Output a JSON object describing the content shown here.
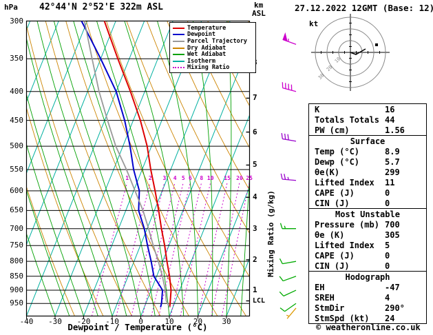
{
  "header": {
    "hpa_label": "hPa",
    "title": "42°44'N 2°52'E 322m ASL",
    "km_label": "km",
    "asl_label": "ASL",
    "date_title": "27.12.2022 12GMT (Base: 12)"
  },
  "axes": {
    "x_label": "Dewpoint / Temperature (°C)",
    "x_ticks": [
      -40,
      -30,
      -20,
      -10,
      0,
      10,
      20,
      30
    ],
    "pressure_ticks": [
      300,
      350,
      400,
      450,
      500,
      550,
      600,
      650,
      700,
      750,
      800,
      850,
      900,
      950
    ],
    "km_ticks": [
      1,
      2,
      3,
      4,
      5,
      6,
      7,
      8
    ],
    "lcl_label": "LCL",
    "mixing_ratio_axis_label": "Mixing Ratio (g/kg)",
    "mixing_ratio_values": [
      1,
      2,
      3,
      4,
      5,
      6,
      8,
      10,
      15,
      20,
      25
    ]
  },
  "legend": {
    "items": [
      {
        "label": "Temperature",
        "color": "#dd0000",
        "style": "solid"
      },
      {
        "label": "Dewpoint",
        "color": "#0000cc",
        "style": "solid"
      },
      {
        "label": "Parcel Trajectory",
        "color": "#999999",
        "style": "solid"
      },
      {
        "label": "Dry Adiabat",
        "color": "#cc8400",
        "style": "solid"
      },
      {
        "label": "Wet Adiabat",
        "color": "#00a000",
        "style": "solid"
      },
      {
        "label": "Isotherm",
        "color": "#00b0a0",
        "style": "solid"
      },
      {
        "label": "Mixing Ratio",
        "color": "#cc00cc",
        "style": "dotted"
      }
    ]
  },
  "hodograph": {
    "kt_label": "kt",
    "ring_labels": [
      "10",
      "20",
      "30"
    ],
    "trace": [
      [
        0,
        0
      ],
      [
        8,
        3
      ],
      [
        15,
        -1
      ],
      [
        22,
        -5
      ]
    ],
    "dot": [
      38,
      -11
    ]
  },
  "table": {
    "sections": [
      {
        "header": null,
        "rows": [
          [
            "K",
            "16"
          ],
          [
            "Totals Totals",
            "44"
          ],
          [
            "PW (cm)",
            "1.56"
          ]
        ]
      },
      {
        "header": "Surface",
        "rows": [
          [
            "Temp (°C)",
            "8.9"
          ],
          [
            "Dewp (°C)",
            "5.7"
          ],
          [
            "θe(K)",
            "299"
          ],
          [
            "Lifted Index",
            "11"
          ],
          [
            "CAPE (J)",
            "0"
          ],
          [
            "CIN (J)",
            "0"
          ]
        ]
      },
      {
        "header": "Most Unstable",
        "rows": [
          [
            "Pressure (mb)",
            "700"
          ],
          [
            "θe (K)",
            "305"
          ],
          [
            "Lifted Index",
            "5"
          ],
          [
            "CAPE (J)",
            "0"
          ],
          [
            "CIN (J)",
            "0"
          ]
        ]
      },
      {
        "header": "Hodograph",
        "rows": [
          [
            "EH",
            "-47"
          ],
          [
            "SREH",
            "4"
          ],
          [
            "StmDir",
            "290°"
          ],
          [
            "StmSpd (kt)",
            "24"
          ]
        ]
      }
    ]
  },
  "footer": {
    "copyright": "© weatheronline.co.uk"
  },
  "chart_data": {
    "type": "line",
    "title": "42°44'N 2°52'E 322m ASL",
    "x_axis": {
      "label": "Dewpoint / Temperature (°C)",
      "range": [
        -40,
        38
      ]
    },
    "y_axis": {
      "label": "hPa",
      "scale": "log",
      "range": [
        300,
        1000
      ]
    },
    "series": [
      {
        "name": "Temperature",
        "color": "#dd0000",
        "pressure_hpa": [
          965,
          950,
          900,
          850,
          800,
          750,
          700,
          650,
          600,
          550,
          500,
          450,
          400,
          350,
          300
        ],
        "temp_c": [
          8.9,
          8.5,
          7.0,
          4.5,
          1.5,
          -1.5,
          -5.0,
          -8.5,
          -12.5,
          -17.0,
          -21.5,
          -27.5,
          -35.0,
          -44.0,
          -54.0
        ]
      },
      {
        "name": "Dewpoint",
        "color": "#0000cc",
        "pressure_hpa": [
          965,
          950,
          900,
          850,
          800,
          750,
          700,
          650,
          600,
          550,
          500,
          450,
          400,
          350,
          300
        ],
        "temp_c": [
          5.7,
          5.5,
          4.0,
          -1.0,
          -4.0,
          -7.5,
          -11.0,
          -15.5,
          -18.0,
          -23.0,
          -27.5,
          -33.0,
          -40.0,
          -50.0,
          -62.0
        ]
      },
      {
        "name": "Parcel Trajectory",
        "color": "#999999",
        "pressure_hpa": [
          965,
          940,
          900,
          850,
          800,
          750,
          700,
          650,
          600,
          550,
          500,
          450,
          400,
          350,
          300
        ],
        "temp_c": [
          8.9,
          6.8,
          5.0,
          2.0,
          -1.5,
          -5.5,
          -9.5,
          -14.0,
          -19.5,
          -25.5,
          -32.5,
          -39.0,
          -46.0,
          -53.0,
          -61.0
        ]
      }
    ],
    "wind_barbs": [
      {
        "pressure_hpa": 330,
        "speed_kt": 55,
        "dir_deg": 290,
        "color": "#cc00cc"
      },
      {
        "pressure_hpa": 400,
        "speed_kt": 40,
        "dir_deg": 285,
        "color": "#cc00cc"
      },
      {
        "pressure_hpa": 490,
        "speed_kt": 30,
        "dir_deg": 280,
        "color": "#9900cc"
      },
      {
        "pressure_hpa": 575,
        "speed_kt": 25,
        "dir_deg": 275,
        "color": "#9900cc"
      },
      {
        "pressure_hpa": 700,
        "speed_kt": 15,
        "dir_deg": 270,
        "color": "#00aa00"
      },
      {
        "pressure_hpa": 800,
        "speed_kt": 10,
        "dir_deg": 260,
        "color": "#00aa00"
      },
      {
        "pressure_hpa": 850,
        "speed_kt": 10,
        "dir_deg": 250,
        "color": "#00aa00"
      },
      {
        "pressure_hpa": 900,
        "speed_kt": 10,
        "dir_deg": 245,
        "color": "#00aa00"
      },
      {
        "pressure_hpa": 950,
        "speed_kt": 8,
        "dir_deg": 235,
        "color": "#00aa00"
      },
      {
        "pressure_hpa": 968,
        "speed_kt": 5,
        "dir_deg": 220,
        "color": "#dd9900"
      }
    ],
    "km_to_pressure": {
      "1": 899,
      "2": 795,
      "3": 701,
      "4": 616,
      "5": 540,
      "6": 472,
      "7": 411,
      "8": 356
    },
    "lcl_pressure_hpa": 940
  }
}
